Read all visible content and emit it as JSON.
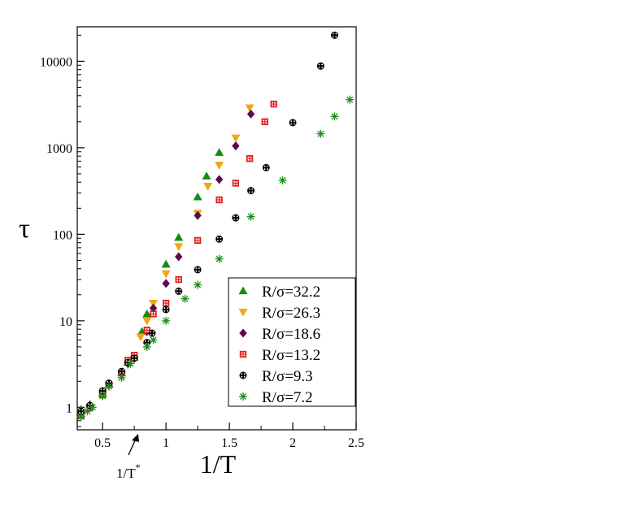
{
  "chart_data": {
    "type": "scatter",
    "xlabel": "1/T",
    "ylabel": "τ",
    "xlim": [
      0.3,
      2.5
    ],
    "ylim": [
      0.55,
      25000
    ],
    "yscale": "log",
    "x_ticks": [
      0.5,
      1,
      1.5,
      2,
      2.5
    ],
    "x_tick_labels": [
      "0.5",
      "1",
      "1.5",
      "2",
      "2.5"
    ],
    "y_ticks": [
      1,
      10,
      100,
      1000,
      10000
    ],
    "y_tick_labels": [
      "1",
      "10",
      "100",
      "1000",
      "10000"
    ],
    "annotation": {
      "text": "1/T",
      "sup": "*",
      "x": 0.8
    },
    "legend_position": "bottom-right",
    "grid": false,
    "series": [
      {
        "name": "R/σ=32.2",
        "color": "#128c12",
        "marker": "triangle-up",
        "x": [
          0.33,
          0.4,
          0.5,
          0.55,
          0.65,
          0.7,
          0.75,
          0.81,
          0.85,
          1.0,
          1.1,
          1.25,
          1.32,
          1.42
        ],
        "y": [
          0.95,
          1.08,
          1.45,
          1.85,
          2.5,
          3.3,
          3.8,
          7.5,
          12,
          45,
          92,
          270,
          470,
          880
        ]
      },
      {
        "name": "R/σ=26.3",
        "color": "#f5a416",
        "marker": "triangle-down",
        "x": [
          0.33,
          0.4,
          0.5,
          0.55,
          0.65,
          0.7,
          0.75,
          0.8,
          0.85,
          0.9,
          1.0,
          1.1,
          1.25,
          1.33,
          1.42,
          1.55,
          1.66
        ],
        "y": [
          0.85,
          1.0,
          1.35,
          1.75,
          2.4,
          3.1,
          3.6,
          6.5,
          10,
          16,
          35,
          72,
          175,
          360,
          630,
          1300,
          2900
        ]
      },
      {
        "name": "R/σ=18.6",
        "color": "#5a0a50",
        "marker": "diamond",
        "x": [
          0.33,
          0.4,
          0.5,
          0.55,
          0.65,
          0.7,
          0.75,
          0.85,
          0.9,
          1.0,
          1.1,
          1.25,
          1.42,
          1.55,
          1.67
        ],
        "y": [
          0.9,
          1.05,
          1.45,
          1.85,
          2.5,
          3.2,
          3.7,
          7.5,
          14,
          27,
          55,
          165,
          430,
          1050,
          2450
        ]
      },
      {
        "name": "R/σ=13.2",
        "color": "#e02020",
        "marker": "square",
        "x": [
          0.33,
          0.4,
          0.5,
          0.55,
          0.65,
          0.7,
          0.75,
          0.85,
          0.9,
          1.0,
          1.1,
          1.25,
          1.42,
          1.55,
          1.66,
          1.78,
          1.85
        ],
        "y": [
          0.8,
          1.0,
          1.4,
          1.85,
          2.5,
          3.5,
          4.0,
          7.8,
          12,
          16,
          30,
          85,
          250,
          390,
          750,
          2000,
          3200
        ]
      },
      {
        "name": "R/σ=9.3",
        "color": "#000000",
        "marker": "circle",
        "x": [
          0.33,
          0.4,
          0.5,
          0.55,
          0.65,
          0.7,
          0.75,
          0.85,
          0.89,
          1.0,
          1.1,
          1.25,
          1.42,
          1.55,
          1.67,
          1.79,
          2.0,
          2.22,
          2.33
        ],
        "y": [
          0.9,
          1.05,
          1.55,
          1.9,
          2.6,
          3.3,
          3.7,
          5.6,
          7.2,
          13.5,
          22,
          39,
          88,
          155,
          320,
          590,
          1950,
          8800,
          20000
        ]
      },
      {
        "name": "R/σ=7.2",
        "color": "#1e8c1e",
        "marker": "asterisk",
        "x": [
          0.33,
          0.38,
          0.42,
          0.5,
          0.55,
          0.65,
          0.72,
          0.85,
          0.9,
          1.0,
          1.15,
          1.25,
          1.42,
          1.67,
          1.92,
          2.22,
          2.33,
          2.45
        ],
        "y": [
          0.78,
          0.9,
          1.0,
          1.35,
          1.75,
          2.2,
          3.2,
          5.0,
          6.0,
          10,
          18,
          26,
          52,
          160,
          420,
          1450,
          2300,
          3600
        ]
      }
    ]
  }
}
